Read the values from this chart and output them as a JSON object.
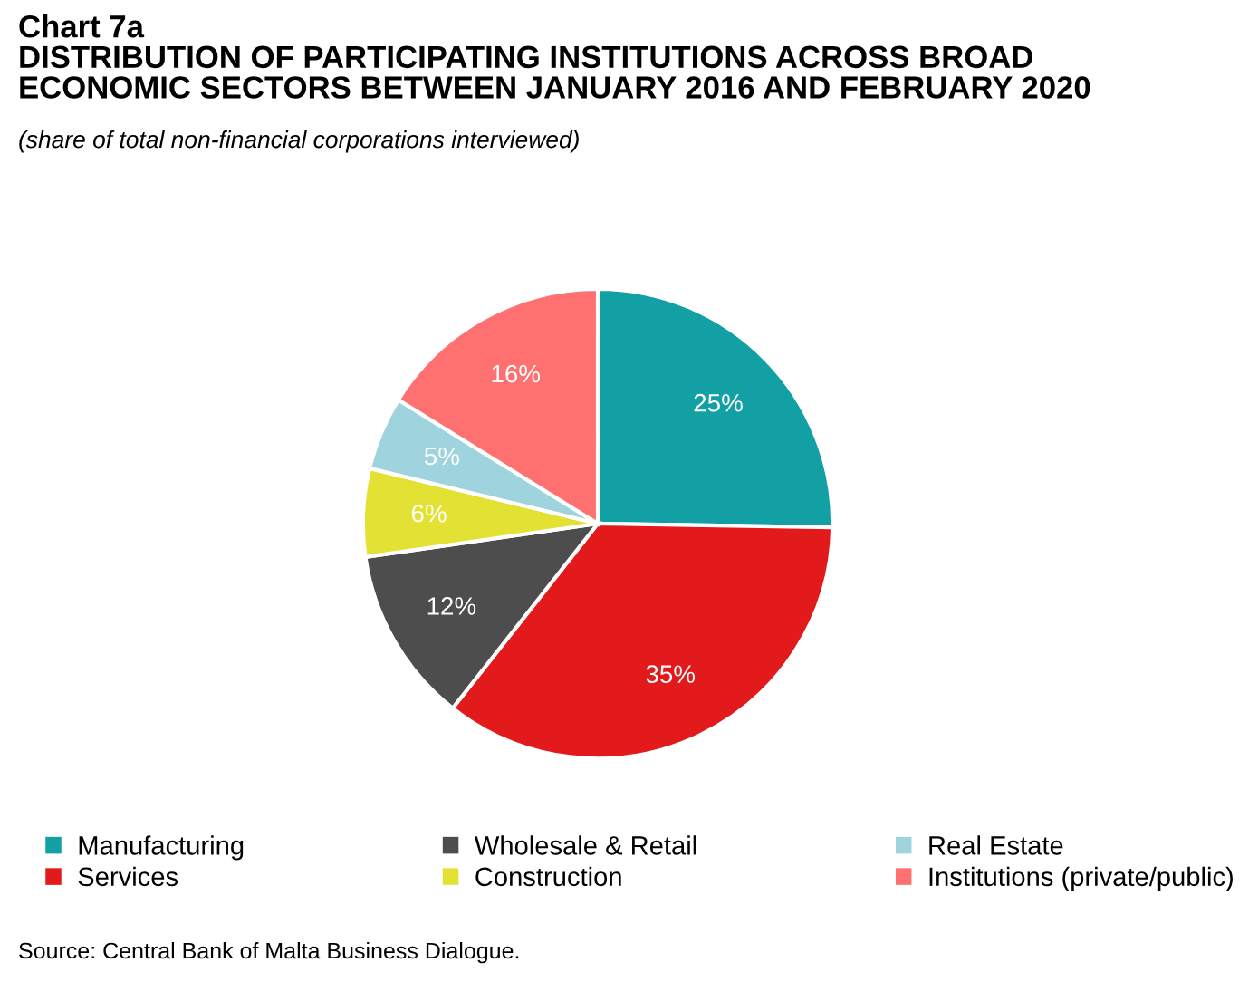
{
  "chart_data": {
    "type": "pie",
    "title": "Chart 7a\nDISTRIBUTION OF PARTICIPATING INSTITUTIONS ACROSS BROAD\nECONOMIC SECTORS BETWEEN JANUARY 2016 AND FEBRUARY 2020",
    "subtitle": "(share of total non-financial corporations interviewed)",
    "categories": [
      "Manufacturing",
      "Services",
      "Wholesale & Retail",
      "Construction",
      "Real Estate",
      "Institutions (private/public)"
    ],
    "values": [
      25,
      35,
      12,
      6,
      5,
      16
    ],
    "value_labels": [
      "25%",
      "35%",
      "12%",
      "6%",
      "5%",
      "16%"
    ],
    "colors": [
      "#13a0a5",
      "#e31a1c",
      "#4d4d4d",
      "#e3e234",
      "#9fd3dd",
      "#ff7070"
    ],
    "legend": "bottom",
    "annotations": [
      "Source: Central Bank of Malta Business Dialogue."
    ]
  }
}
